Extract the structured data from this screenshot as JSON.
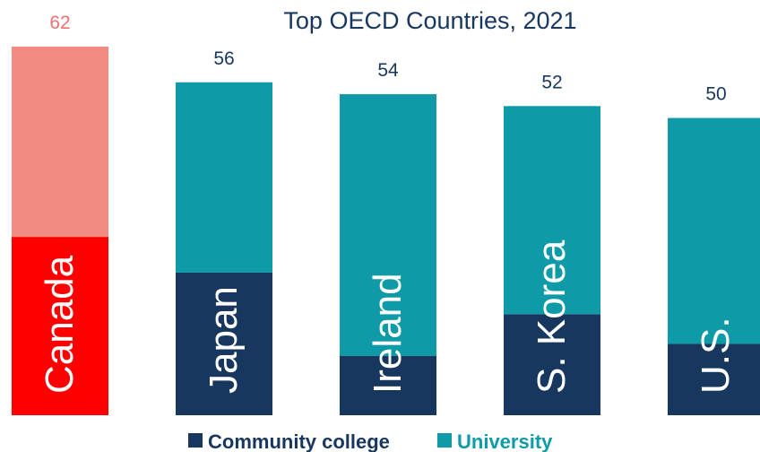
{
  "chart_data": {
    "type": "bar",
    "stacked": true,
    "title": "Top OECD Countries, 2021",
    "xlabel": "",
    "ylabel": "",
    "ylim": [
      0,
      62
    ],
    "categories": [
      "Canada",
      "Japan",
      "Ireland",
      "S. Korea",
      "U.S."
    ],
    "totals": [
      62,
      56,
      54,
      52,
      50
    ],
    "series": [
      {
        "name": "Community college",
        "values": [
          30,
          24,
          10,
          17,
          12
        ]
      },
      {
        "name": "University",
        "values": [
          32,
          32,
          44,
          35,
          38
        ]
      }
    ],
    "highlight": "Canada",
    "colors": {
      "community_college": "#17375e",
      "university": "#0e9aa7",
      "highlight_community_college": "#ff0000",
      "highlight_university": "#f28b82",
      "highlight_total": "#f36f6f",
      "label": "#17375e"
    },
    "legend": {
      "position": "bottom"
    },
    "grid": false
  }
}
